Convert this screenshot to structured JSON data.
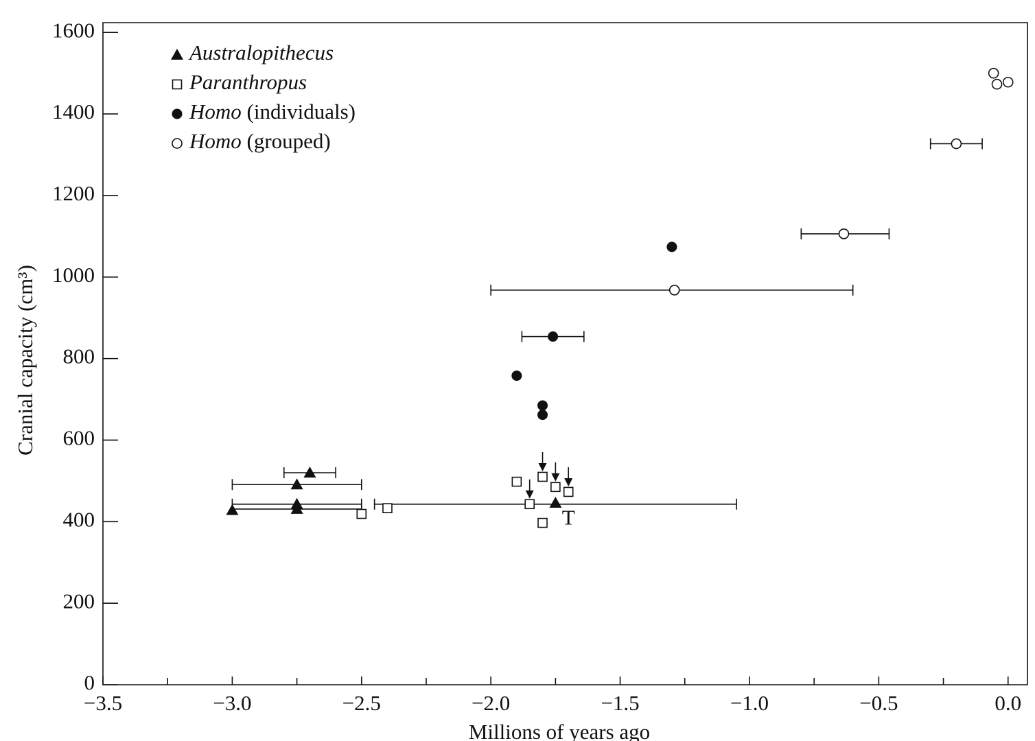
{
  "chart_data": {
    "type": "scatter",
    "x_label": "Millions of years ago",
    "y_label": "Cranial capacity (cm³)",
    "xlim": [
      -3.5,
      0.075
    ],
    "ylim": [
      0,
      1624
    ],
    "xticks": [
      {
        "value": -3.5,
        "label": "−3.5"
      },
      {
        "value": -3.0,
        "label": "−3.0"
      },
      {
        "value": -2.5,
        "label": "−2.5"
      },
      {
        "value": -2.0,
        "label": "−2.0"
      },
      {
        "value": -1.5,
        "label": "−1.5"
      },
      {
        "value": -1.0,
        "label": "−1.0"
      },
      {
        "value": -0.5,
        "label": "−0.5"
      },
      {
        "value": 0.0,
        "label": "0.0"
      }
    ],
    "minor_xticks": [
      -3.25,
      -2.75,
      -2.25,
      -1.75,
      -1.25,
      -0.75,
      -0.25
    ],
    "yticks": [
      0,
      200,
      400,
      600,
      800,
      1000,
      1200,
      1400,
      1600
    ],
    "legend": "upper left",
    "annotations": [
      {
        "text": "T",
        "x": -1.7,
        "y": 405
      }
    ],
    "series": [
      {
        "name": "Australopithecus",
        "marker": "triangle",
        "color": "#111111",
        "x": [
          -2.7,
          -2.75,
          -2.75,
          -2.75,
          -3.0,
          -1.75
        ],
        "values": [
          520,
          491,
          443,
          431,
          428,
          446
        ],
        "xmin": [
          -2.8,
          -3.0,
          -3.0,
          -3.0,
          null,
          null
        ],
        "xmax": [
          -2.6,
          -2.5,
          -2.5,
          -2.5,
          null,
          null
        ]
      },
      {
        "name": "Paranthropus",
        "marker": "square-open",
        "color": "#111111",
        "x": [
          -2.5,
          -2.4,
          -1.9,
          -1.8,
          -1.75,
          -1.7,
          -1.85,
          -1.8
        ],
        "values": [
          419,
          433,
          498,
          510,
          485,
          473,
          443,
          397
        ],
        "xmin": [
          null,
          null,
          null,
          null,
          null,
          null,
          -2.45,
          null
        ],
        "xmax": [
          null,
          null,
          null,
          null,
          null,
          null,
          -1.05,
          null
        ],
        "down_arrow": [
          false,
          false,
          false,
          true,
          true,
          true,
          true,
          false
        ]
      },
      {
        "name": "Homo (individuals)",
        "marker": "circle-filled",
        "color": "#111111",
        "x": [
          -1.3,
          -1.76,
          -1.9,
          -1.8,
          -1.8
        ],
        "values": [
          1074,
          854,
          758,
          685,
          662
        ],
        "xmin": [
          null,
          -1.88,
          null,
          null,
          null
        ],
        "xmax": [
          null,
          -1.64,
          null,
          null,
          null
        ]
      },
      {
        "name": "Homo (grouped)",
        "marker": "circle-open",
        "color": "#111111",
        "x": [
          -1.29,
          -0.635,
          -0.2,
          -0.056,
          -0.043,
          0.0
        ],
        "values": [
          968,
          1106,
          1327,
          1500,
          1473,
          1478
        ],
        "xmin": [
          -2.0,
          -0.8,
          -0.3,
          null,
          null,
          null
        ],
        "xmax": [
          -0.6,
          -0.46,
          -0.1,
          null,
          null,
          null
        ]
      }
    ]
  }
}
